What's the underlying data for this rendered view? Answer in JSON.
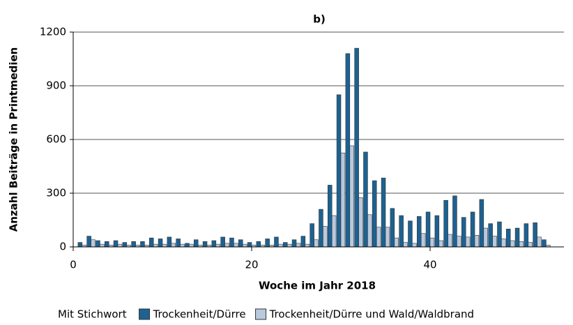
{
  "chart_data": {
    "type": "grouped_bar",
    "title": "b)",
    "x_label": "Woche im Jahr 2018",
    "y_label": "Anzahl Beiträge in Printmedien",
    "legend_title": "Mit Stichwort",
    "x": [
      1,
      2,
      3,
      4,
      5,
      6,
      7,
      8,
      9,
      10,
      11,
      12,
      13,
      14,
      15,
      16,
      17,
      18,
      19,
      20,
      21,
      22,
      23,
      24,
      25,
      26,
      27,
      28,
      29,
      30,
      31,
      32,
      33,
      34,
      35,
      36,
      37,
      38,
      39,
      40,
      41,
      42,
      43,
      44,
      45,
      46,
      47,
      48,
      49,
      50,
      51,
      52,
      53
    ],
    "series": [
      {
        "name": "Trockenheit/Dürre",
        "color": "#1c6293",
        "values": [
          25,
          60,
          35,
          30,
          35,
          25,
          30,
          30,
          50,
          45,
          55,
          45,
          20,
          40,
          30,
          35,
          55,
          50,
          40,
          25,
          30,
          45,
          55,
          25,
          40,
          60,
          130,
          210,
          345,
          850,
          1080,
          1110,
          530,
          370,
          385,
          215,
          175,
          145,
          170,
          195,
          175,
          260,
          285,
          165,
          195,
          265,
          130,
          140,
          100,
          105,
          130,
          135,
          40
        ]
      },
      {
        "name": "Trockenheit/Dürre und Wald/Waldbrand",
        "color": "#b9c9de",
        "values": [
          10,
          40,
          15,
          10,
          15,
          10,
          10,
          10,
          15,
          15,
          20,
          15,
          15,
          10,
          10,
          15,
          20,
          20,
          15,
          10,
          10,
          10,
          15,
          15,
          20,
          15,
          40,
          115,
          175,
          525,
          565,
          275,
          180,
          110,
          110,
          50,
          25,
          20,
          75,
          50,
          35,
          70,
          60,
          55,
          65,
          105,
          60,
          45,
          35,
          30,
          25,
          55,
          10
        ]
      }
    ],
    "xlim": [
      0,
      55
    ],
    "xticks": [
      0,
      20,
      40
    ],
    "ylim": [
      0,
      1200
    ],
    "yticks": [
      0,
      300,
      600,
      900,
      1200
    ],
    "grid": true,
    "legend": "bottom"
  }
}
